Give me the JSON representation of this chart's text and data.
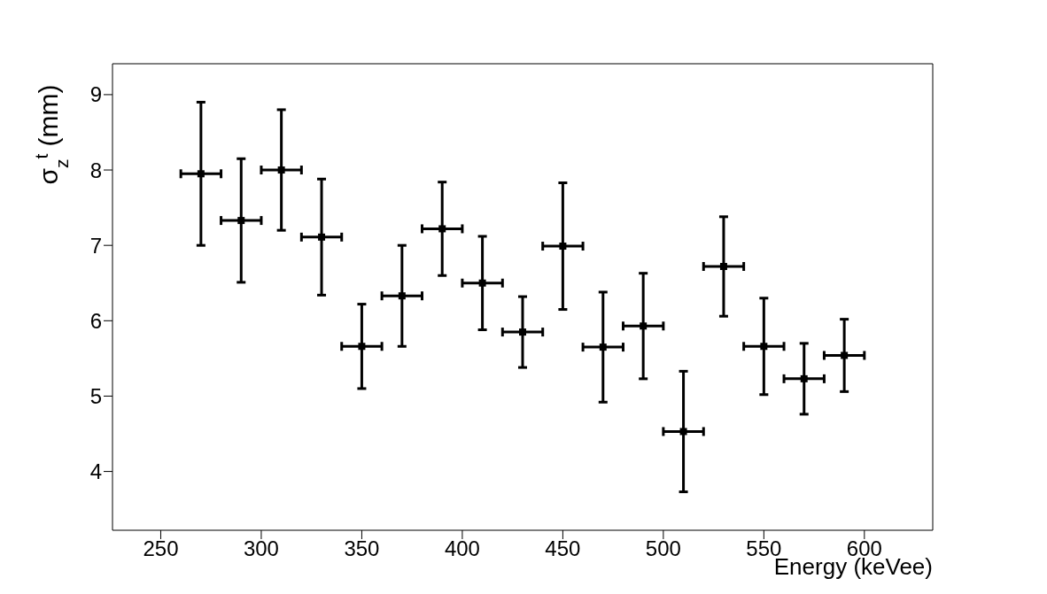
{
  "chart_data": {
    "type": "scatter",
    "xlabel": "Energy (keVee)",
    "ylabel": "σ$_{z}$$^{t}$ (mm)",
    "x": [
      270,
      290,
      310,
      330,
      350,
      370,
      390,
      410,
      430,
      450,
      470,
      490,
      510,
      530,
      550,
      570,
      590
    ],
    "series": [
      {
        "color": "#000000",
        "values": [
          7.95,
          7.33,
          8.0,
          7.11,
          5.66,
          6.33,
          7.22,
          6.5,
          5.85,
          6.99,
          5.65,
          5.93,
          4.53,
          6.72,
          5.66,
          5.23,
          5.54
        ],
        "errors": [
          0.95,
          0.82,
          0.8,
          0.77,
          0.56,
          0.67,
          0.62,
          0.62,
          0.47,
          0.84,
          0.73,
          0.7,
          0.8,
          0.66,
          0.64,
          0.47,
          0.48
        ],
        "xerrors": [
          10,
          10,
          10,
          10,
          10,
          10,
          10,
          10,
          10,
          10,
          10,
          10,
          10,
          10,
          10,
          10,
          10
        ]
      }
    ],
    "xlim": [
      226,
      634
    ],
    "xticks": [
      250,
      300,
      350,
      400,
      450,
      500,
      550,
      600
    ],
    "ylim": [
      3.22,
      9.41
    ],
    "yticks": [
      4,
      5,
      6,
      7,
      8,
      9
    ],
    "grid": false,
    "legend": false,
    "marker": "square"
  }
}
